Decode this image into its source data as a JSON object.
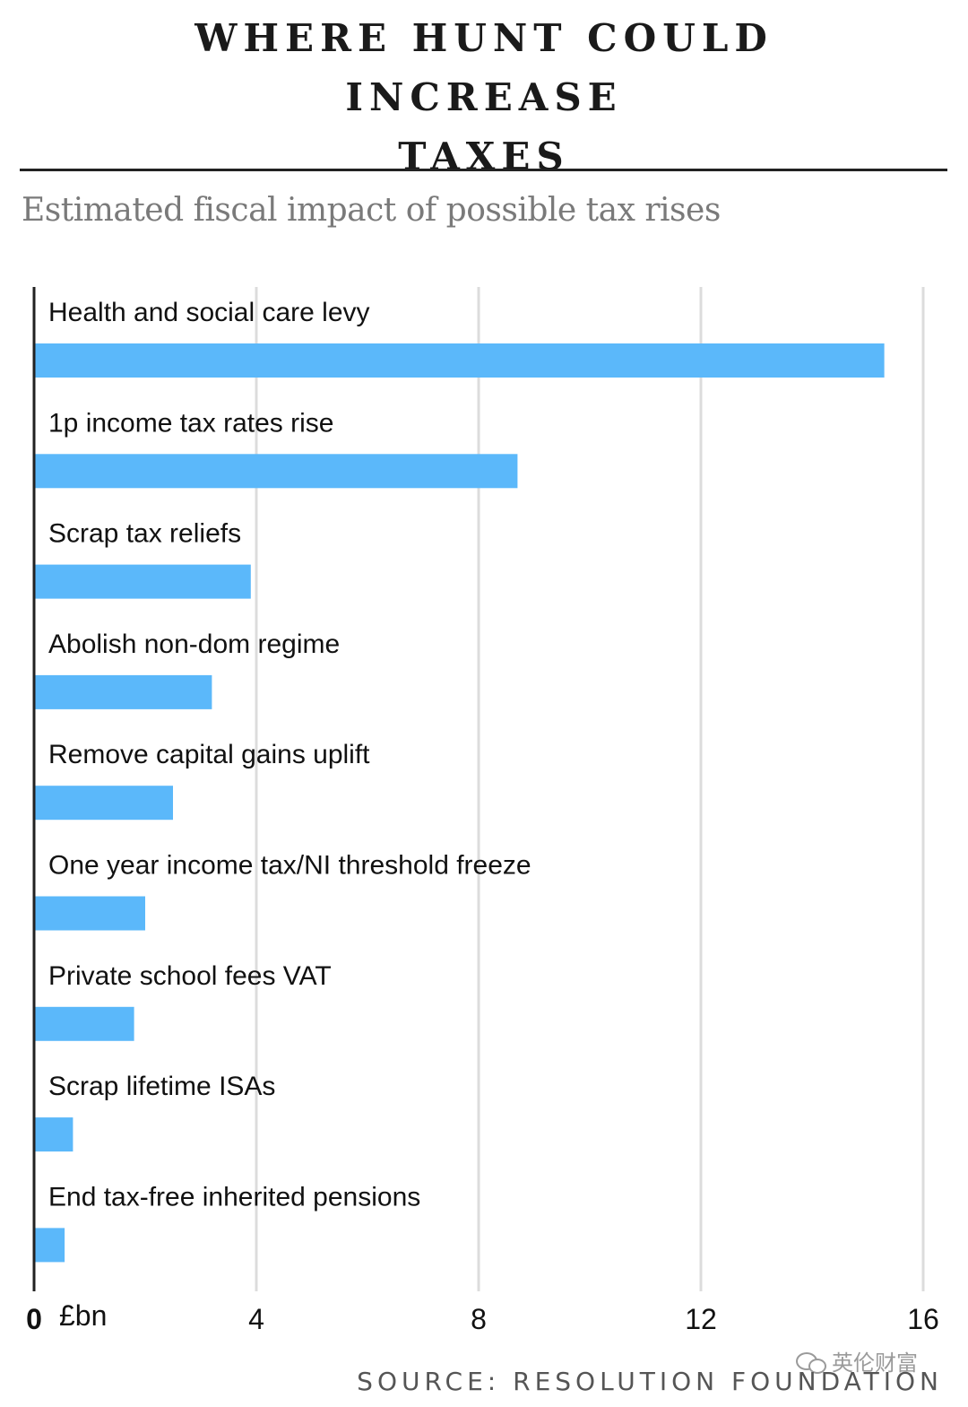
{
  "header": {
    "title_line1": "WHERE HUNT COULD INCREASE",
    "title_line2": "TAXES",
    "subtitle": "Estimated fiscal impact of possible tax rises"
  },
  "colors": {
    "bar": "#5bb8fa",
    "gridline": "#dcdcdc",
    "axis": "#222222"
  },
  "chart_data": {
    "type": "bar",
    "orientation": "horizontal",
    "title": "Estimated fiscal impact of possible tax rises",
    "xlabel": "£bn",
    "ylabel": "",
    "xlim": [
      0,
      16
    ],
    "xticks": [
      0,
      4,
      8,
      12,
      16
    ],
    "grid": true,
    "categories": [
      "Health and social care levy",
      "1p income tax rates rise",
      "Scrap tax reliefs",
      "Abolish non-dom regime",
      "Remove capital gains uplift",
      "One year income tax/NI threshold freeze",
      "Private school fees VAT",
      "Scrap lifetime ISAs",
      "End tax-free inherited pensions"
    ],
    "values": [
      15.3,
      8.7,
      3.9,
      3.2,
      2.5,
      2.0,
      1.8,
      0.7,
      0.55
    ]
  },
  "footer": {
    "source": "SOURCE: RESOLUTION FOUNDATION",
    "watermark": "英伦财富"
  }
}
